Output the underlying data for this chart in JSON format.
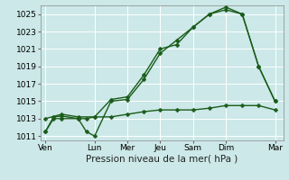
{
  "title": "",
  "xlabel": "Pression niveau de la mer( hPa )",
  "bg_color": "#cce8e8",
  "grid_color": "#ffffff",
  "line_color": "#1a5c1a",
  "marker_color": "#1a5c1a",
  "ylim": [
    1010.5,
    1026.0
  ],
  "yticks": [
    1011,
    1013,
    1015,
    1017,
    1019,
    1021,
    1023,
    1025
  ],
  "x_labels": [
    "Ven",
    "Lun",
    "Mer",
    "Jeu",
    "Sam",
    "Dim",
    "Mar"
  ],
  "x_tick_positions": [
    0,
    3,
    5,
    7,
    9,
    11,
    14
  ],
  "x_max": 14.5,
  "x_min": -0.3,
  "series": [
    {
      "x": [
        0,
        0.5,
        1,
        2,
        2.5,
        3,
        4,
        5,
        6,
        7,
        8,
        9,
        10,
        11,
        12,
        13,
        14
      ],
      "y": [
        1011.5,
        1013,
        1013,
        1013,
        1011.5,
        1011,
        1015,
        1015.2,
        1017.5,
        1020.5,
        1022,
        1023.5,
        1025,
        1025.5,
        1025,
        1019,
        1015
      ]
    },
    {
      "x": [
        0,
        0.5,
        1,
        2,
        2.5,
        3,
        4,
        5,
        6,
        7,
        8,
        9,
        10,
        11,
        12,
        13,
        14
      ],
      "y": [
        1011.5,
        1013.2,
        1013.3,
        1013,
        1013,
        1013.2,
        1015.2,
        1015.5,
        1018,
        1021,
        1021.5,
        1023.5,
        1025,
        1025.8,
        1025,
        1019,
        1015
      ]
    },
    {
      "x": [
        0,
        1,
        2,
        3,
        4,
        5,
        6,
        7,
        8,
        9,
        10,
        11,
        12,
        13,
        14
      ],
      "y": [
        1013,
        1013.5,
        1013.2,
        1013.2,
        1013.2,
        1013.5,
        1013.8,
        1014,
        1014,
        1014,
        1014.2,
        1014.5,
        1014.5,
        1014.5,
        1014
      ]
    }
  ],
  "marker_size": 2.5,
  "line_width": 1.0,
  "fontsize_tick": 6.5,
  "fontsize_xlabel": 7.5
}
